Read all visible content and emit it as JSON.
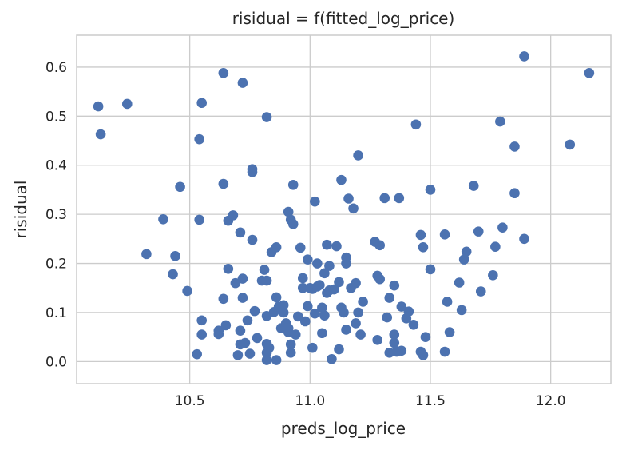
{
  "chart_data": {
    "type": "scatter",
    "title": "risidual = f(fitted_log_price)",
    "xlabel": "preds_log_price",
    "ylabel": "risidual",
    "xlim": [
      10.03,
      12.25
    ],
    "ylim": [
      -0.045,
      0.665
    ],
    "xticks": [
      10.5,
      11.0,
      11.5,
      12.0
    ],
    "xtick_labels": [
      "10.5",
      "11.0",
      "11.5",
      "12.0"
    ],
    "yticks": [
      0.0,
      0.1,
      0.2,
      0.3,
      0.4,
      0.5,
      0.6
    ],
    "ytick_labels": [
      "0.0",
      "0.1",
      "0.2",
      "0.3",
      "0.4",
      "0.5",
      "0.6"
    ],
    "grid": true,
    "colors": {
      "marker": "#4c72b0",
      "grid": "#cccccc",
      "spine": "#cccccc",
      "text": "#262626"
    },
    "points": [
      [
        10.12,
        0.52
      ],
      [
        10.13,
        0.463
      ],
      [
        10.24,
        0.525
      ],
      [
        10.32,
        0.219
      ],
      [
        10.39,
        0.29
      ],
      [
        10.43,
        0.178
      ],
      [
        10.44,
        0.215
      ],
      [
        10.46,
        0.356
      ],
      [
        10.49,
        0.144
      ],
      [
        10.53,
        0.015
      ],
      [
        10.54,
        0.453
      ],
      [
        10.55,
        0.527
      ],
      [
        10.54,
        0.289
      ],
      [
        10.55,
        0.084
      ],
      [
        10.55,
        0.055
      ],
      [
        10.62,
        0.056
      ],
      [
        10.62,
        0.063
      ],
      [
        10.64,
        0.588
      ],
      [
        10.64,
        0.362
      ],
      [
        10.64,
        0.128
      ],
      [
        10.65,
        0.074
      ],
      [
        10.66,
        0.189
      ],
      [
        10.66,
        0.287
      ],
      [
        10.68,
        0.298
      ],
      [
        10.69,
        0.16
      ],
      [
        10.7,
        0.013
      ],
      [
        10.71,
        0.035
      ],
      [
        10.71,
        0.063
      ],
      [
        10.72,
        0.568
      ],
      [
        10.71,
        0.263
      ],
      [
        10.72,
        0.169
      ],
      [
        10.72,
        0.13
      ],
      [
        10.73,
        0.038
      ],
      [
        10.74,
        0.084
      ],
      [
        10.75,
        0.016
      ],
      [
        10.76,
        0.392
      ],
      [
        10.76,
        0.386
      ],
      [
        10.76,
        0.248
      ],
      [
        10.77,
        0.103
      ],
      [
        10.78,
        0.048
      ],
      [
        10.8,
        0.165
      ],
      [
        10.81,
        0.187
      ],
      [
        10.82,
        0.498
      ],
      [
        10.82,
        0.165
      ],
      [
        10.82,
        0.093
      ],
      [
        10.82,
        0.036
      ],
      [
        10.82,
        0.018
      ],
      [
        10.82,
        0.003
      ],
      [
        10.83,
        0.028
      ],
      [
        10.84,
        0.223
      ],
      [
        10.85,
        0.101
      ],
      [
        10.86,
        0.131
      ],
      [
        10.86,
        0.233
      ],
      [
        10.86,
        0.003
      ],
      [
        10.87,
        0.112
      ],
      [
        10.88,
        0.108
      ],
      [
        10.88,
        0.068
      ],
      [
        10.89,
        0.1
      ],
      [
        10.89,
        0.115
      ],
      [
        10.9,
        0.078
      ],
      [
        10.91,
        0.068
      ],
      [
        10.91,
        0.06
      ],
      [
        10.91,
        0.305
      ],
      [
        10.92,
        0.289
      ],
      [
        10.92,
        0.035
      ],
      [
        10.92,
        0.018
      ],
      [
        10.93,
        0.28
      ],
      [
        10.93,
        0.36
      ],
      [
        10.94,
        0.055
      ],
      [
        10.95,
        0.092
      ],
      [
        10.96,
        0.232
      ],
      [
        10.97,
        0.15
      ],
      [
        10.97,
        0.17
      ],
      [
        10.98,
        0.082
      ],
      [
        10.99,
        0.208
      ],
      [
        10.99,
        0.113
      ],
      [
        11.0,
        0.15
      ],
      [
        11.01,
        0.148
      ],
      [
        11.01,
        0.028
      ],
      [
        11.02,
        0.326
      ],
      [
        11.02,
        0.098
      ],
      [
        11.03,
        0.153
      ],
      [
        11.03,
        0.2
      ],
      [
        11.04,
        0.156
      ],
      [
        11.05,
        0.11
      ],
      [
        11.05,
        0.058
      ],
      [
        11.06,
        0.18
      ],
      [
        11.06,
        0.094
      ],
      [
        11.07,
        0.238
      ],
      [
        11.07,
        0.14
      ],
      [
        11.08,
        0.195
      ],
      [
        11.08,
        0.145
      ],
      [
        11.09,
        0.005
      ],
      [
        11.1,
        0.147
      ],
      [
        11.11,
        0.235
      ],
      [
        11.12,
        0.025
      ],
      [
        11.12,
        0.162
      ],
      [
        11.13,
        0.37
      ],
      [
        11.13,
        0.11
      ],
      [
        11.14,
        0.1
      ],
      [
        11.15,
        0.212
      ],
      [
        11.15,
        0.2
      ],
      [
        11.15,
        0.065
      ],
      [
        11.16,
        0.332
      ],
      [
        11.17,
        0.15
      ],
      [
        11.18,
        0.312
      ],
      [
        11.19,
        0.16
      ],
      [
        11.19,
        0.078
      ],
      [
        11.2,
        0.1
      ],
      [
        11.2,
        0.42
      ],
      [
        11.21,
        0.055
      ],
      [
        11.22,
        0.122
      ],
      [
        11.27,
        0.244
      ],
      [
        11.28,
        0.175
      ],
      [
        11.28,
        0.044
      ],
      [
        11.29,
        0.237
      ],
      [
        11.29,
        0.168
      ],
      [
        11.31,
        0.333
      ],
      [
        11.32,
        0.09
      ],
      [
        11.33,
        0.13
      ],
      [
        11.33,
        0.018
      ],
      [
        11.35,
        0.155
      ],
      [
        11.35,
        0.055
      ],
      [
        11.35,
        0.038
      ],
      [
        11.36,
        0.02
      ],
      [
        11.37,
        0.333
      ],
      [
        11.38,
        0.022
      ],
      [
        11.38,
        0.112
      ],
      [
        11.4,
        0.088
      ],
      [
        11.41,
        0.102
      ],
      [
        11.43,
        0.075
      ],
      [
        11.44,
        0.483
      ],
      [
        11.46,
        0.258
      ],
      [
        11.46,
        0.02
      ],
      [
        11.47,
        0.233
      ],
      [
        11.47,
        0.013
      ],
      [
        11.48,
        0.05
      ],
      [
        11.5,
        0.35
      ],
      [
        11.5,
        0.188
      ],
      [
        11.56,
        0.259
      ],
      [
        11.56,
        0.02
      ],
      [
        11.57,
        0.122
      ],
      [
        11.58,
        0.06
      ],
      [
        11.62,
        0.161
      ],
      [
        11.63,
        0.105
      ],
      [
        11.64,
        0.208
      ],
      [
        11.65,
        0.224
      ],
      [
        11.68,
        0.358
      ],
      [
        11.7,
        0.265
      ],
      [
        11.71,
        0.143
      ],
      [
        11.76,
        0.176
      ],
      [
        11.77,
        0.234
      ],
      [
        11.79,
        0.489
      ],
      [
        11.8,
        0.273
      ],
      [
        11.85,
        0.438
      ],
      [
        11.85,
        0.343
      ],
      [
        11.89,
        0.622
      ],
      [
        11.89,
        0.25
      ],
      [
        12.08,
        0.442
      ],
      [
        12.16,
        0.588
      ]
    ]
  }
}
